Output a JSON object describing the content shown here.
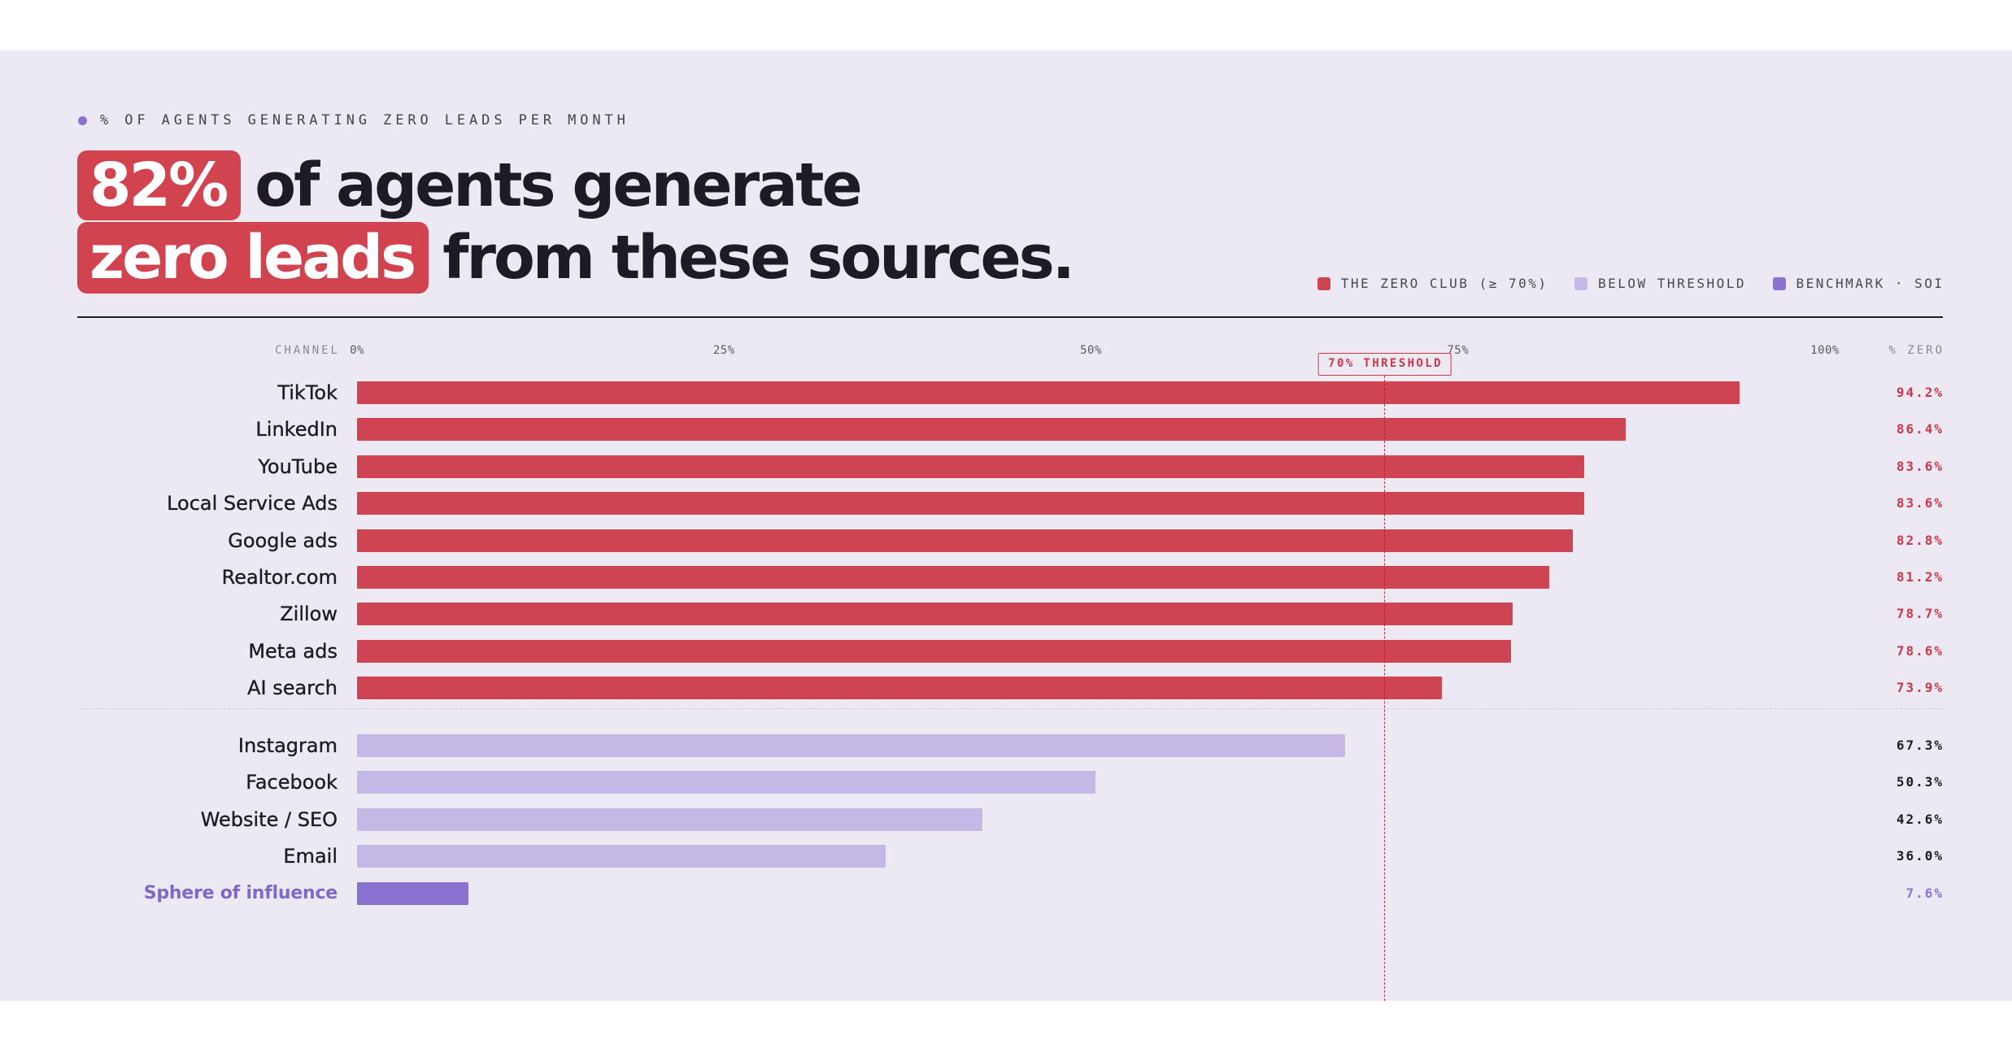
{
  "eyebrow": {
    "text": "% OF AGENTS GENERATING ZERO LEADS PER MONTH"
  },
  "headline": {
    "line1_highlight": "82%",
    "line1_rest": "of agents generate",
    "line2_highlight": "zero leads",
    "line2_rest": "from these sources."
  },
  "colors": {
    "panel_background": "#EDE9F3",
    "ink": "#1D1B24",
    "highlight": "#D0434F",
    "eyebrow_dot": "#8A73D0",
    "threshold": "#C9384A"
  },
  "chart_data": {
    "type": "bar",
    "orientation": "horizontal",
    "category_header": "CHANNEL",
    "value_header": "% ZERO",
    "xlim": [
      0,
      100
    ],
    "ticks": [
      0,
      25,
      50,
      75,
      100
    ],
    "tick_labels": [
      "0%",
      "25%",
      "50%",
      "75%",
      "100%"
    ],
    "grid": false,
    "legend_position": "top-right",
    "threshold": {
      "value": 70,
      "label": "70% THRESHOLD"
    },
    "series": [
      {
        "name": "THE ZERO CLUB (≥ 70%)",
        "color": "#CF4452",
        "value_color": "#C9384A",
        "label_color": "#1D1B24",
        "categories": [
          "TikTok",
          "LinkedIn",
          "YouTube",
          "Local Service Ads",
          "Google ads",
          "Realtor.com",
          "Zillow",
          "Meta ads",
          "AI search"
        ],
        "values": [
          94.2,
          86.4,
          83.6,
          83.6,
          82.8,
          81.2,
          78.7,
          78.6,
          73.9
        ],
        "value_labels": [
          "94.2%",
          "86.4%",
          "83.6%",
          "83.6%",
          "82.8%",
          "81.2%",
          "78.7%",
          "78.6%",
          "73.9%"
        ]
      },
      {
        "name": "BELOW THRESHOLD",
        "color": "#C5B8E7",
        "value_color": "#1D1B24",
        "label_color": "#1D1B24",
        "categories": [
          "Instagram",
          "Facebook",
          "Website / SEO",
          "Email"
        ],
        "values": [
          67.3,
          50.3,
          42.6,
          36.0
        ],
        "value_labels": [
          "67.3%",
          "50.3%",
          "42.6%",
          "36.0%"
        ]
      },
      {
        "name": "BENCHMARK · SOI",
        "color": "#8A73D0",
        "value_color": "#8A73D0",
        "label_color": "#8068C9",
        "categories": [
          "Sphere of influence"
        ],
        "values": [
          7.6
        ],
        "value_labels": [
          "7.6%"
        ]
      }
    ]
  }
}
